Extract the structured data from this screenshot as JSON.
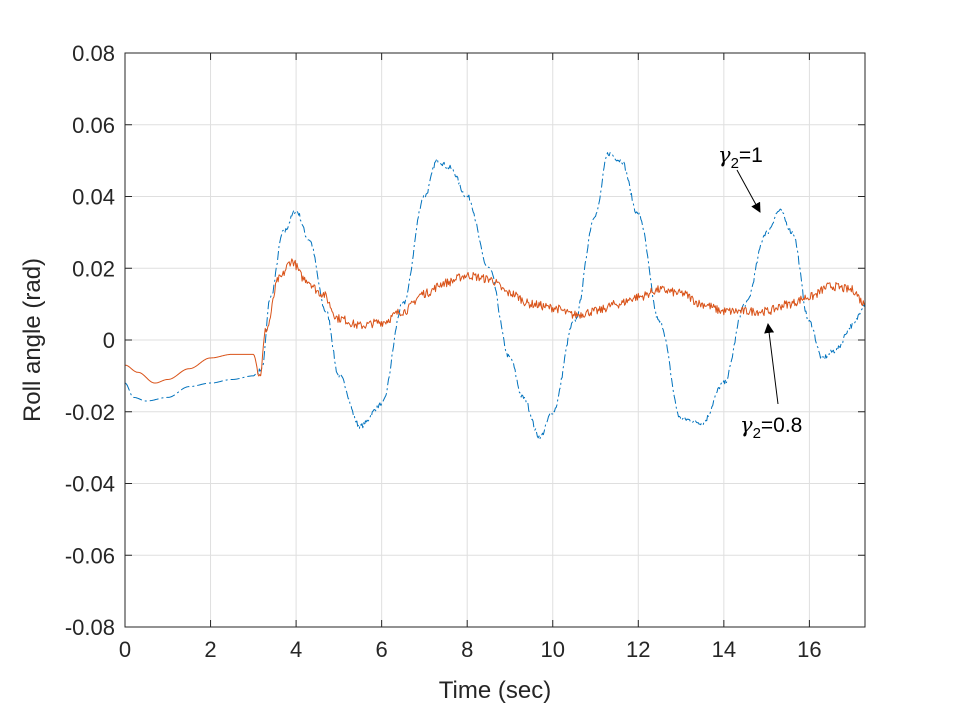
{
  "chart_data": {
    "type": "line",
    "title": "",
    "xlabel": "Time (sec)",
    "ylabel": "Roll angle (rad)",
    "xlim": [
      0,
      17.3
    ],
    "ylim": [
      -0.08,
      0.08
    ],
    "xticks": [
      0,
      2,
      4,
      6,
      8,
      10,
      12,
      14,
      16
    ],
    "yticks": [
      -0.08,
      -0.06,
      -0.04,
      -0.02,
      0,
      0.02,
      0.04,
      0.06,
      0.08
    ],
    "xtick_labels": [
      "0",
      "2",
      "4",
      "6",
      "8",
      "10",
      "12",
      "14",
      "16"
    ],
    "ytick_labels": [
      "-0.08",
      "-0.06",
      "-0.04",
      "-0.02",
      "0",
      "0.02",
      "0.04",
      "0.06",
      "0.08"
    ],
    "grid": true,
    "series": [
      {
        "color": "#0072BD",
        "style": "dashdot",
        "x": [
          0,
          0.2,
          0.5,
          1.0,
          1.5,
          2.0,
          2.5,
          3.0,
          3.1,
          3.2,
          3.4,
          3.7,
          4.0,
          4.3,
          4.7,
          5.0,
          5.5,
          6.0,
          6.5,
          7.0,
          7.3,
          7.6,
          8.0,
          8.5,
          9.0,
          9.3,
          9.7,
          10.0,
          10.5,
          11.0,
          11.3,
          11.6,
          12.0,
          12.5,
          13.0,
          13.5,
          14.0,
          14.5,
          15.0,
          15.3,
          15.6,
          16.0,
          16.3,
          16.6,
          17.0,
          17.3
        ],
        "y": [
          -0.012,
          -0.016,
          -0.017,
          -0.016,
          -0.013,
          -0.012,
          -0.011,
          -0.01,
          -0.009,
          -0.008,
          0.012,
          0.03,
          0.036,
          0.028,
          0.008,
          -0.01,
          -0.024,
          -0.018,
          0.01,
          0.04,
          0.05,
          0.048,
          0.04,
          0.02,
          -0.005,
          -0.016,
          -0.027,
          -0.02,
          0.005,
          0.035,
          0.052,
          0.05,
          0.035,
          0.005,
          -0.022,
          -0.023,
          -0.012,
          0.01,
          0.03,
          0.036,
          0.03,
          0.005,
          -0.005,
          -0.003,
          0.004,
          0.01
        ]
      },
      {
        "color": "#D95319",
        "style": "solid",
        "x": [
          0,
          0.3,
          0.7,
          1.0,
          1.5,
          2.0,
          2.5,
          3.0,
          3.15,
          3.3,
          3.6,
          3.9,
          4.2,
          4.6,
          5.0,
          5.5,
          6.0,
          6.5,
          7.0,
          7.5,
          8.0,
          8.5,
          9.0,
          9.5,
          10.0,
          10.5,
          11.0,
          11.5,
          12.0,
          12.5,
          13.0,
          13.5,
          14.0,
          14.5,
          15.0,
          15.5,
          16.0,
          16.5,
          17.0,
          17.3
        ],
        "y": [
          -0.007,
          -0.009,
          -0.012,
          -0.011,
          -0.008,
          -0.005,
          -0.004,
          -0.004,
          -0.01,
          0.003,
          0.017,
          0.022,
          0.017,
          0.013,
          0.006,
          0.004,
          0.005,
          0.008,
          0.013,
          0.016,
          0.018,
          0.017,
          0.013,
          0.01,
          0.009,
          0.007,
          0.008,
          0.01,
          0.012,
          0.014,
          0.013,
          0.01,
          0.008,
          0.008,
          0.008,
          0.01,
          0.012,
          0.015,
          0.014,
          0.01
        ]
      }
    ],
    "annotations": [
      {
        "symbol": "γ",
        "subscript": "2",
        "text": "=1"
      },
      {
        "symbol": "γ",
        "subscript": "2",
        "text": "=0.8"
      }
    ]
  }
}
